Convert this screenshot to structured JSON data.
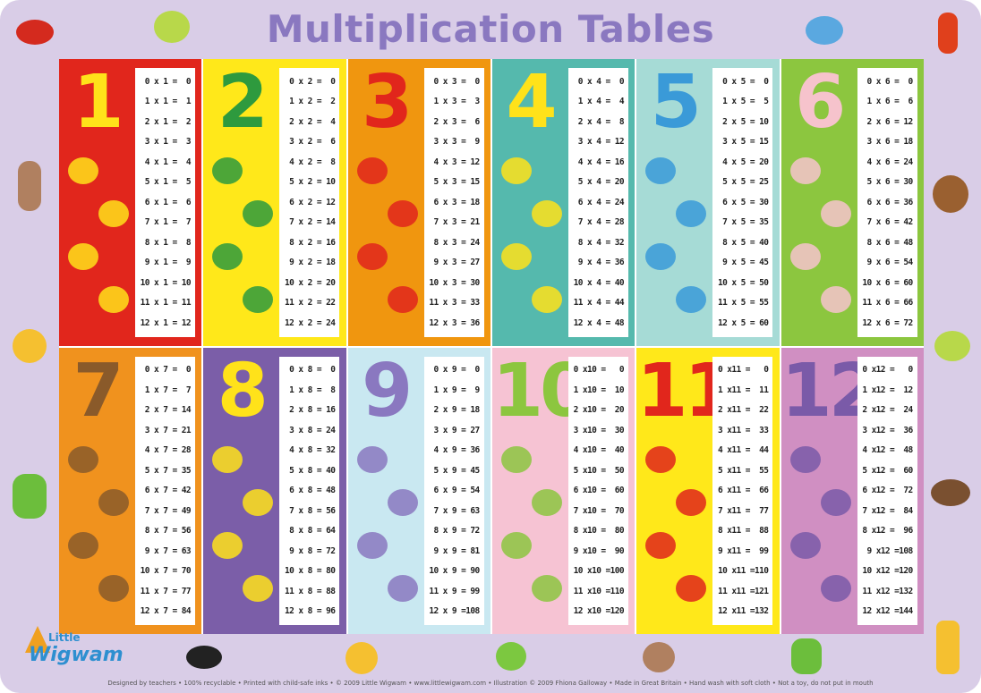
{
  "title": "Multiplication Tables",
  "footer": "Designed by teachers • 100% recyclable • Printed with child-safe inks • © 2009 Little Wigwam • www.littlewigwam.com • Illustration © 2009 Fhiona Galloway • Made in Great Britain • Hand wash with soft cloth • Not a toy, do not put in mouth",
  "logo": {
    "line1": "Little",
    "line2": "Wigwam"
  },
  "colors": {
    "background": "#d9cde7",
    "title": "#8a78c0"
  },
  "tables": [
    {
      "number": "1",
      "bg": "#e1261c",
      "fg": "#ffe21a",
      "animal": "giraffe",
      "rows": [
        "0 x 1 =  0",
        "1 x 1 =  1",
        "2 x 1 =  2",
        "3 x 1 =  3",
        "4 x 1 =  4",
        "5 x 1 =  5",
        "6 x 1 =  6",
        "7 x 1 =  7",
        "8 x 1 =  8",
        "9 x 1 =  9",
        "10 x 1 = 10",
        "11 x 1 = 11",
        "12 x 1 = 12"
      ]
    },
    {
      "number": "2",
      "bg": "#ffe81a",
      "fg": "#2e9a3e",
      "animal": "dinosaur",
      "rows": [
        "0 x 2 =  0",
        "1 x 2 =  2",
        "2 x 2 =  4",
        "3 x 2 =  6",
        "4 x 2 =  8",
        "5 x 2 = 10",
        "6 x 2 = 12",
        "7 x 2 = 14",
        "8 x 2 = 16",
        "9 x 2 = 18",
        "10 x 2 = 20",
        "11 x 2 = 22",
        "12 x 2 = 24"
      ]
    },
    {
      "number": "3",
      "bg": "#f0960f",
      "fg": "#e1261c",
      "animal": "monkey",
      "rows": [
        "0 x 3 =  0",
        "1 x 3 =  3",
        "2 x 3 =  6",
        "3 x 3 =  9",
        "4 x 3 = 12",
        "5 x 3 = 15",
        "6 x 3 = 18",
        "7 x 3 = 21",
        "8 x 3 = 24",
        "9 x 3 = 27",
        "10 x 3 = 30",
        "11 x 3 = 33",
        "12 x 3 = 36"
      ]
    },
    {
      "number": "4",
      "bg": "#55b9ad",
      "fg": "#ffe21a",
      "animal": "lion",
      "rows": [
        "0 x 4 =  0",
        "1 x 4 =  4",
        "2 x 4 =  8",
        "3 x 4 = 12",
        "4 x 4 = 16",
        "5 x 4 = 20",
        "6 x 4 = 24",
        "7 x 4 = 28",
        "8 x 4 = 32",
        "9 x 4 = 36",
        "10 x 4 = 40",
        "11 x 4 = 44",
        "12 x 4 = 48"
      ]
    },
    {
      "number": "5",
      "bg": "#a6dbd6",
      "fg": "#3a9ad8",
      "animal": "seahorse",
      "rows": [
        "0 x 5 =  0",
        "1 x 5 =  5",
        "2 x 5 = 10",
        "3 x 5 = 15",
        "4 x 5 = 20",
        "5 x 5 = 25",
        "6 x 5 = 30",
        "7 x 5 = 35",
        "8 x 5 = 40",
        "9 x 5 = 45",
        "10 x 5 = 50",
        "11 x 5 = 55",
        "12 x 5 = 60"
      ]
    },
    {
      "number": "6",
      "bg": "#8cc63f",
      "fg": "#f6c3cc",
      "animal": "rabbit",
      "rows": [
        "0 x 6 =  0",
        "1 x 6 =  6",
        "2 x 6 = 12",
        "3 x 6 = 18",
        "4 x 6 = 24",
        "5 x 6 = 30",
        "6 x 6 = 36",
        "7 x 6 = 42",
        "8 x 6 = 48",
        "9 x 6 = 54",
        "10 x 6 = 60",
        "11 x 6 = 66",
        "12 x 6 = 72"
      ]
    },
    {
      "number": "7",
      "bg": "#f0921e",
      "fg": "#8a5a2a",
      "animal": "hedgehog",
      "rows": [
        "0 x 7 =  0",
        "1 x 7 =  7",
        "2 x 7 = 14",
        "3 x 7 = 21",
        "4 x 7 = 28",
        "5 x 7 = 35",
        "6 x 7 = 42",
        "7 x 7 = 49",
        "8 x 7 = 56",
        "9 x 7 = 63",
        "10 x 7 = 70",
        "11 x 7 = 77",
        "12 x 7 = 84"
      ]
    },
    {
      "number": "8",
      "bg": "#7b5ea8",
      "fg": "#ffe21a",
      "animal": "butterfly",
      "rows": [
        "0 x 8 =  0",
        "1 x 8 =  8",
        "2 x 8 = 16",
        "3 x 8 = 24",
        "4 x 8 = 32",
        "5 x 8 = 40",
        "6 x 8 = 48",
        "7 x 8 = 56",
        "8 x 8 = 64",
        "9 x 8 = 72",
        "10 x 8 = 80",
        "11 x 8 = 88",
        "12 x 8 = 96"
      ]
    },
    {
      "number": "9",
      "bg": "#c9e8f1",
      "fg": "#8a78c0",
      "animal": "frog",
      "rows": [
        "0 x 9 =  0",
        "1 x 9 =  9",
        "2 x 9 = 18",
        "3 x 9 = 27",
        "4 x 9 = 36",
        "5 x 9 = 45",
        "6 x 9 = 54",
        "7 x 9 = 63",
        "8 x 9 = 72",
        "9 x 9 = 81",
        "10 x 9 = 90",
        "11 x 9 = 99",
        "12 x 9 =108"
      ]
    },
    {
      "number": "10",
      "bg": "#f6c3d3",
      "fg": "#8cc63f",
      "animal": "snail",
      "rows": [
        "0 x10 =   0",
        "1 x10 =  10",
        "2 x10 =  20",
        "3 x10 =  30",
        "4 x10 =  40",
        "5 x10 =  50",
        "6 x10 =  60",
        "7 x10 =  70",
        "8 x10 =  80",
        "9 x10 =  90",
        "10 x10 =100",
        "11 x10 =110",
        "12 x10 =120"
      ]
    },
    {
      "number": "11",
      "bg": "#ffe81a",
      "fg": "#e1261c",
      "animal": "ladybird",
      "rows": [
        "0 x11 =   0",
        "1 x11 =  11",
        "2 x11 =  22",
        "3 x11 =  33",
        "4 x11 =  44",
        "5 x11 =  55",
        "6 x11 =  66",
        "7 x11 =  77",
        "8 x11 =  88",
        "9 x11 =  99",
        "10 x11 =110",
        "11 x11 =121",
        "12 x11 =132"
      ]
    },
    {
      "number": "12",
      "bg": "#d08fc2",
      "fg": "#7a5aa8",
      "animal": "ant",
      "rows": [
        "0 x12 =   0",
        "1 x12 =  12",
        "2 x12 =  24",
        "3 x12 =  36",
        "4 x12 =  48",
        "5 x12 =  60",
        "6 x12 =  72",
        "7 x12 =  84",
        "8 x12 =  96",
        "9 x12 =108",
        "10 x12 =120",
        "11 x12 =132",
        "12 x12 =144"
      ]
    }
  ]
}
